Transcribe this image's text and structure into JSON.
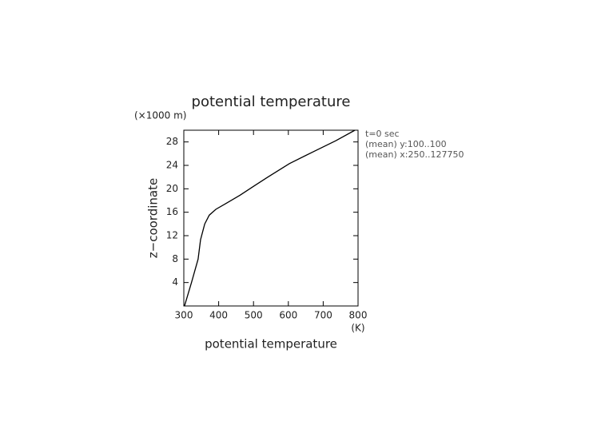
{
  "chart_data": {
    "type": "line",
    "title": "potential temperature",
    "x_label": "potential temperature",
    "x_unit": "(K)",
    "y_label": "z−coordinate",
    "y_unit": "(×1000 m)",
    "annotations": [
      "t=0 sec",
      "(mean) y:100..100",
      "(mean) x:250..127750"
    ],
    "x": [
      302,
      322,
      341,
      348,
      360,
      373,
      392,
      421,
      461,
      502,
      541,
      603,
      674,
      736,
      791
    ],
    "series": [
      {
        "name": "potential temperature",
        "color": "#000000",
        "values": [
          0,
          4,
          8,
          11.3,
          14,
          15.5,
          16.5,
          17.5,
          18.9,
          20.5,
          22,
          24.3,
          26.4,
          28.2,
          30
        ]
      }
    ],
    "xlim": [
      300,
      800
    ],
    "xticks": [
      300,
      400,
      500,
      600,
      700,
      800
    ],
    "ylim": [
      0,
      30
    ],
    "yticks": [
      4,
      8,
      12,
      16,
      20,
      24,
      28
    ],
    "grid": false
  }
}
